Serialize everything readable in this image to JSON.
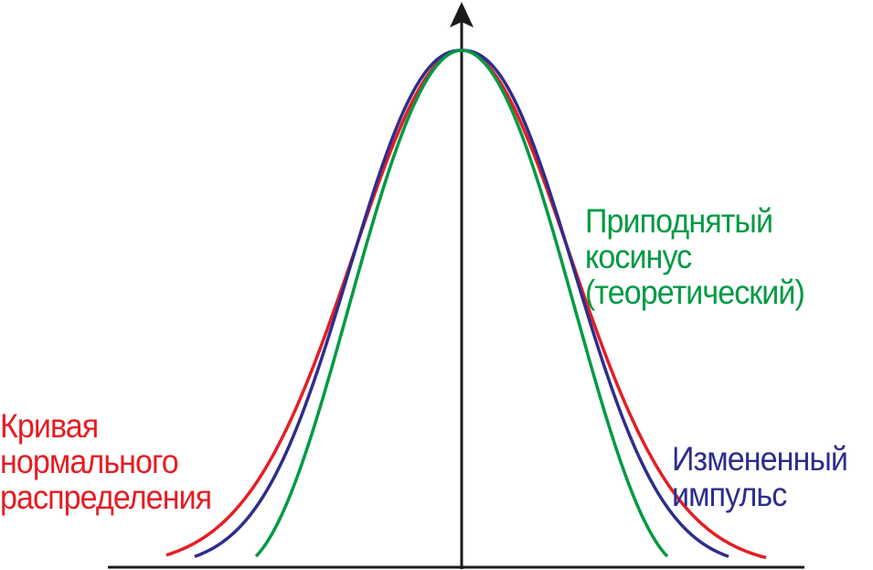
{
  "chart_data": {
    "type": "line",
    "series": [
      {
        "name": "Кривая нормального распределения",
        "color": "#e31e24",
        "function": "gaussian"
      },
      {
        "name": "Приподнятый косинус (теоретический)",
        "color": "#009a44",
        "function": "raised-cosine"
      },
      {
        "name": "Измененный импульс",
        "color": "#2e2d8c",
        "function": "modified-pulse"
      }
    ],
    "axes": {
      "color": "#1a1a1a"
    }
  },
  "labels": {
    "normal": {
      "line1": "Кривая",
      "line2": "нормального",
      "line3": "распределения"
    },
    "cosine": {
      "line1": "Приподнятый",
      "line2": "косинус",
      "line3": "(теоретический)"
    },
    "pulse": {
      "line1": "Измененный",
      "line2": "импульс"
    }
  }
}
